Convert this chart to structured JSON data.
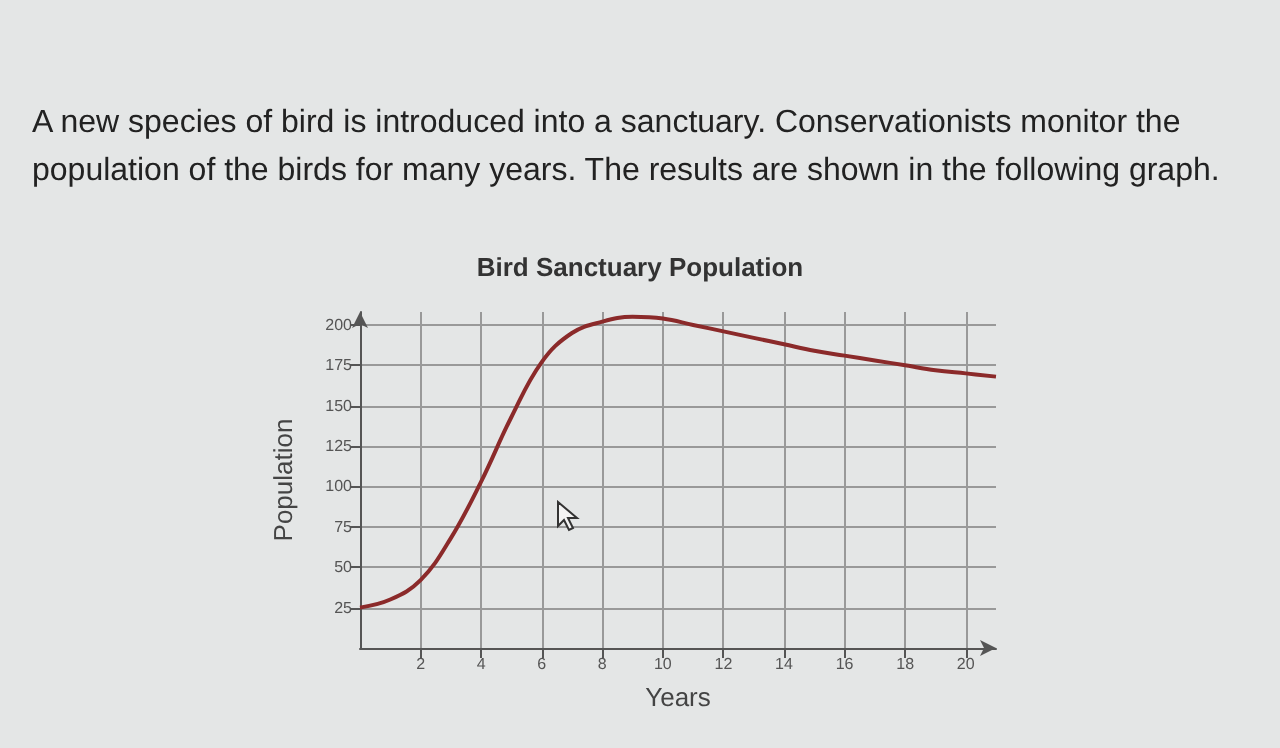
{
  "chart_data": {
    "type": "line",
    "title": "Bird Sanctuary Population",
    "xlabel": "Years",
    "ylabel": "Population",
    "annotations": [
      "A new species of bird is introduced into a sanctuary. Conservationists monitor the",
      "population of the birds for many years. The results are shown in the following graph."
    ],
    "x": [
      0,
      1,
      2,
      3,
      4,
      5,
      6,
      7,
      8,
      9,
      10,
      11,
      12,
      13,
      14,
      15,
      16,
      17,
      18,
      19,
      20,
      21
    ],
    "series": [
      {
        "color": "#8b2a2a",
        "values": [
          25,
          30,
          42,
          68,
          103,
          143,
          177,
          195,
          202,
          205,
          204,
          200,
          196,
          192,
          188,
          184,
          181,
          178,
          175,
          172,
          170,
          168
        ]
      }
    ],
    "xlim": [
      0,
      21
    ],
    "ylim": [
      0,
      208
    ],
    "xticks": [
      2,
      4,
      6,
      8,
      10,
      12,
      14,
      16,
      18,
      20
    ],
    "yticks": [
      25,
      50,
      75,
      100,
      125,
      150,
      175,
      200
    ],
    "grid": true,
    "marker": "none",
    "line_style": "solid"
  }
}
